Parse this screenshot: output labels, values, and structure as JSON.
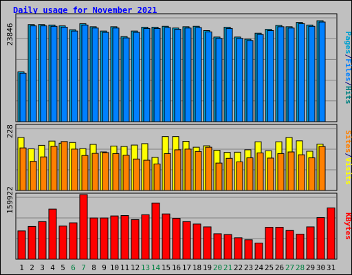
{
  "title": "Daily usage for November 2021",
  "colors": {
    "title": "#0000ff",
    "background": "#c0c0c0",
    "panel_border": "#000000",
    "gridline": "#808080",
    "hits": "#00a0d0",
    "files": "#0080ff",
    "sites": "#ff8000",
    "visits": "#ffff00",
    "kbytes": "#ff0000",
    "weekend_label": "#008040",
    "weekday_label": "#000080"
  },
  "chart_data": [
    {
      "type": "bar",
      "panel": "top",
      "title": "Daily usage for November 2021",
      "categories": [
        "1",
        "2",
        "3",
        "4",
        "5",
        "6",
        "7",
        "8",
        "9",
        "10",
        "11",
        "12",
        "13",
        "14",
        "15",
        "16",
        "17",
        "18",
        "19",
        "20",
        "21",
        "22",
        "23",
        "24",
        "25",
        "26",
        "27",
        "28",
        "29",
        "30",
        "31"
      ],
      "weekend_days": [
        "6",
        "7",
        "13",
        "14",
        "20",
        "21",
        "27",
        "28"
      ],
      "y_max_label": "23846",
      "right_label_parts": [
        {
          "text": "Pages",
          "color": "#00a0d0"
        },
        {
          "text": "/",
          "color": "#000080"
        },
        {
          "text": "Files",
          "color": "#0080ff"
        },
        {
          "text": "/",
          "color": "#000080"
        },
        {
          "text": "Hits",
          "color": "#008080"
        }
      ],
      "series": [
        {
          "name": "Hits",
          "values": [
            11600,
            22600,
            22600,
            22500,
            22300,
            21400,
            22800,
            22100,
            21100,
            22100,
            19800,
            21100,
            22000,
            22000,
            22200,
            21800,
            22100,
            22200,
            21200,
            19700,
            22000,
            19700,
            19200,
            20600,
            21500,
            22400,
            22100,
            23100,
            22500,
            23500,
            null
          ]
        },
        {
          "name": "Files",
          "values": [
            11300,
            22300,
            22300,
            22200,
            22000,
            21100,
            22500,
            21800,
            20800,
            21800,
            19500,
            20800,
            21700,
            21700,
            21900,
            21500,
            21800,
            21900,
            20900,
            19400,
            21700,
            19400,
            18900,
            20300,
            21200,
            22100,
            21800,
            22800,
            22200,
            23200,
            null
          ]
        }
      ]
    },
    {
      "type": "bar",
      "panel": "middle",
      "categories": [
        "1",
        "2",
        "3",
        "4",
        "5",
        "6",
        "7",
        "8",
        "9",
        "10",
        "11",
        "12",
        "13",
        "14",
        "15",
        "16",
        "17",
        "18",
        "19",
        "20",
        "21",
        "22",
        "23",
        "24",
        "25",
        "26",
        "27",
        "28",
        "29",
        "30",
        "31"
      ],
      "y_max_label": "228",
      "right_label_parts": [
        {
          "text": "Sites",
          "color": "#ff8000"
        },
        {
          "text": "/",
          "color": "#000080"
        },
        {
          "text": "Visits",
          "color": "#ffff00"
        }
      ],
      "series": [
        {
          "name": "Visits",
          "values": [
            224,
            176,
            191,
            209,
            200,
            203,
            177,
            195,
            163,
            188,
            186,
            192,
            198,
            140,
            228,
            228,
            208,
            183,
            189,
            170,
            161,
            162,
            172,
            206,
            168,
            206,
            224,
            210,
            166,
            196,
            null
          ]
        },
        {
          "name": "Sites",
          "values": [
            180,
            123,
            142,
            187,
            207,
            175,
            148,
            157,
            160,
            156,
            149,
            133,
            128,
            112,
            156,
            172,
            175,
            165,
            183,
            116,
            136,
            121,
            138,
            159,
            137,
            156,
            163,
            151,
            138,
            186,
            null
          ]
        }
      ]
    },
    {
      "type": "bar",
      "panel": "bottom",
      "categories": [
        "1",
        "2",
        "3",
        "4",
        "5",
        "6",
        "7",
        "8",
        "9",
        "10",
        "11",
        "12",
        "13",
        "14",
        "15",
        "16",
        "17",
        "18",
        "19",
        "20",
        "21",
        "22",
        "23",
        "24",
        "25",
        "26",
        "27",
        "28",
        "29",
        "30",
        "31"
      ],
      "y_max_label": "159922",
      "right_label_parts": [
        {
          "text": "KBytes",
          "color": "#ff0000"
        }
      ],
      "series": [
        {
          "name": "KBytes",
          "values": [
            70000,
            81000,
            93000,
            124000,
            82000,
            90000,
            159922,
            102000,
            102000,
            107000,
            108000,
            98000,
            110000,
            139000,
            112000,
            101000,
            93000,
            87000,
            80000,
            63000,
            61000,
            53000,
            48000,
            40000,
            79000,
            79000,
            71000,
            62000,
            80000,
            103000,
            127000
          ]
        }
      ]
    }
  ]
}
